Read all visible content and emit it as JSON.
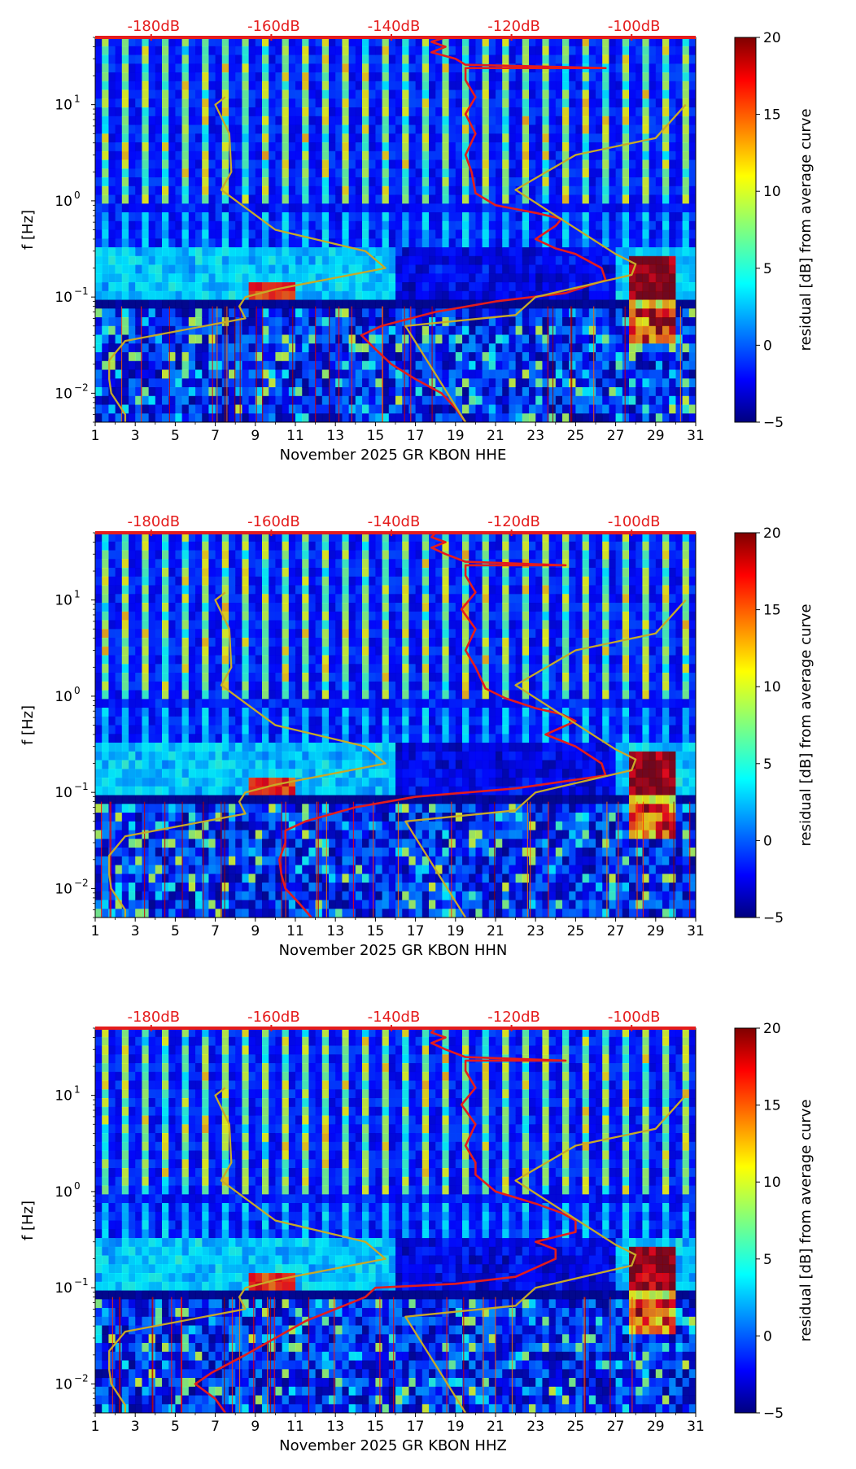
{
  "chart_data": [
    {
      "type": "heatmap",
      "id": "hhe",
      "xlabel": "November 2025 GR KBON  HHE",
      "ylabel": "f [Hz]",
      "xlim": [
        1,
        31
      ],
      "xticks": [
        "1",
        "3",
        "5",
        "7",
        "9",
        "11",
        "13",
        "15",
        "17",
        "19",
        "21",
        "23",
        "25",
        "27",
        "29",
        "31"
      ],
      "yscale": "log",
      "ylim": [
        0.005,
        50
      ],
      "yticks": [
        {
          "v": 0.01,
          "base": "10",
          "exp": "−2"
        },
        {
          "v": 0.1,
          "base": "10",
          "exp": "−1"
        },
        {
          "v": 1,
          "base": "10",
          "exp": "0"
        },
        {
          "v": 10,
          "base": "10",
          "exp": "1"
        }
      ],
      "top_axis": {
        "labels": [
          "-180dB",
          "-160dB",
          "-140dB",
          "-120dB",
          "-100dB"
        ],
        "days": [
          4,
          10,
          16,
          22,
          28
        ],
        "db_range": [
          -190,
          -90
        ]
      },
      "colorbar": {
        "label": "residual [dB] from average curve",
        "range": [
          -5,
          20
        ],
        "ticks": [
          "20",
          "15",
          "10",
          "5",
          "0",
          "−5"
        ],
        "tick_values": [
          20,
          15,
          10,
          5,
          0,
          -5
        ]
      },
      "series": [
        {
          "name": "average PSD (red)",
          "color": "#e51c1c",
          "points": [
            [
              19.5,
              0.005
            ],
            [
              19.0,
              0.007
            ],
            [
              18.3,
              0.01
            ],
            [
              17.0,
              0.014
            ],
            [
              15.8,
              0.02
            ],
            [
              14.9,
              0.03
            ],
            [
              14.3,
              0.04
            ],
            [
              15.3,
              0.05
            ],
            [
              18.0,
              0.07
            ],
            [
              21.0,
              0.09
            ],
            [
              24.5,
              0.11
            ],
            [
              26.5,
              0.15
            ],
            [
              26.3,
              0.2
            ],
            [
              25.0,
              0.28
            ],
            [
              24.0,
              0.32
            ],
            [
              23.0,
              0.4
            ],
            [
              24.0,
              0.55
            ],
            [
              24.3,
              0.65
            ],
            [
              23.0,
              0.75
            ],
            [
              21.0,
              0.9
            ],
            [
              20.0,
              1.2
            ],
            [
              19.8,
              2
            ],
            [
              19.5,
              3
            ],
            [
              20.0,
              5
            ],
            [
              19.5,
              8
            ],
            [
              20.0,
              12
            ],
            [
              19.5,
              18
            ],
            [
              19.5,
              24
            ],
            [
              26.5,
              24
            ],
            [
              19.5,
              26
            ],
            [
              19.0,
              30
            ],
            [
              17.8,
              35
            ],
            [
              18.5,
              40
            ],
            [
              17.8,
              45
            ],
            [
              18.5,
              50
            ]
          ]
        },
        {
          "name": "NLNM/NHNM model (olive)",
          "color": "#c8aa28",
          "points": [
            [
              2.5,
              0.005
            ],
            [
              2.5,
              0.006
            ],
            [
              1.8,
              0.01
            ],
            [
              1.7,
              0.014
            ],
            [
              1.7,
              0.022
            ],
            [
              2.5,
              0.035
            ],
            [
              8.5,
              0.06
            ],
            [
              8.2,
              0.08
            ],
            [
              8.5,
              0.1
            ],
            [
              10.0,
              0.12
            ],
            [
              15.5,
              0.2
            ],
            [
              14.5,
              0.3
            ],
            [
              10.0,
              0.5
            ],
            [
              7.3,
              1.3
            ],
            [
              7.8,
              2
            ],
            [
              7.7,
              5
            ],
            [
              7.0,
              10
            ],
            [
              7.5,
              12
            ]
          ]
        },
        {
          "name": "NHNM model (olive, right)",
          "color": "#c8aa28",
          "points": [
            [
              19.5,
              0.005
            ],
            [
              16.5,
              0.05
            ],
            [
              22.0,
              0.065
            ],
            [
              23.0,
              0.1
            ],
            [
              27.8,
              0.17
            ],
            [
              28.0,
              0.22
            ],
            [
              27.0,
              0.28
            ],
            [
              22.0,
              1.3
            ],
            [
              25.0,
              3
            ],
            [
              29.0,
              4.5
            ],
            [
              30.5,
              10
            ]
          ]
        }
      ]
    },
    {
      "type": "heatmap",
      "id": "hhn",
      "xlabel": "November 2025 GR KBON  HHN",
      "ylabel": "f [Hz]",
      "xlim": [
        1,
        31
      ],
      "xticks": [
        "1",
        "3",
        "5",
        "7",
        "9",
        "11",
        "13",
        "15",
        "17",
        "19",
        "21",
        "23",
        "25",
        "27",
        "29",
        "31"
      ],
      "yscale": "log",
      "ylim": [
        0.005,
        50
      ],
      "yticks": [
        {
          "v": 0.01,
          "base": "10",
          "exp": "−2"
        },
        {
          "v": 0.1,
          "base": "10",
          "exp": "−1"
        },
        {
          "v": 1,
          "base": "10",
          "exp": "0"
        },
        {
          "v": 10,
          "base": "10",
          "exp": "1"
        }
      ],
      "top_axis": {
        "labels": [
          "-180dB",
          "-160dB",
          "-140dB",
          "-120dB",
          "-100dB"
        ],
        "days": [
          4,
          10,
          16,
          22,
          28
        ],
        "db_range": [
          -190,
          -90
        ]
      },
      "colorbar": {
        "label": "residual [dB] from average curve",
        "range": [
          -5,
          20
        ],
        "ticks": [
          "20",
          "15",
          "10",
          "5",
          "0",
          "−5"
        ],
        "tick_values": [
          20,
          15,
          10,
          5,
          0,
          -5
        ]
      },
      "series": [
        {
          "name": "average PSD (red)",
          "color": "#e51c1c",
          "points": [
            [
              11.8,
              0.005
            ],
            [
              11.2,
              0.007
            ],
            [
              10.5,
              0.01
            ],
            [
              10.3,
              0.014
            ],
            [
              10.2,
              0.02
            ],
            [
              10.5,
              0.03
            ],
            [
              10.5,
              0.04
            ],
            [
              11.5,
              0.05
            ],
            [
              14.0,
              0.07
            ],
            [
              17.0,
              0.09
            ],
            [
              22.0,
              0.11
            ],
            [
              26.5,
              0.15
            ],
            [
              26.3,
              0.2
            ],
            [
              25.0,
              0.3
            ],
            [
              23.5,
              0.4
            ],
            [
              25.0,
              0.55
            ],
            [
              24.3,
              0.65
            ],
            [
              23.0,
              0.75
            ],
            [
              21.5,
              0.95
            ],
            [
              20.5,
              1.2
            ],
            [
              20.0,
              2
            ],
            [
              19.5,
              3
            ],
            [
              20.0,
              5
            ],
            [
              19.3,
              8
            ],
            [
              20.0,
              12
            ],
            [
              19.5,
              18
            ],
            [
              19.5,
              23
            ],
            [
              24.5,
              23
            ],
            [
              19.5,
              25
            ],
            [
              18.5,
              30
            ],
            [
              17.8,
              35
            ],
            [
              18.5,
              40
            ],
            [
              17.8,
              45
            ],
            [
              18.0,
              50
            ]
          ]
        },
        {
          "name": "NLNM/NHNM model (olive)",
          "color": "#c8aa28",
          "points": [
            [
              2.5,
              0.005
            ],
            [
              2.5,
              0.006
            ],
            [
              1.8,
              0.01
            ],
            [
              1.7,
              0.014
            ],
            [
              1.7,
              0.022
            ],
            [
              2.5,
              0.035
            ],
            [
              8.5,
              0.06
            ],
            [
              8.2,
              0.08
            ],
            [
              8.5,
              0.1
            ],
            [
              10.0,
              0.12
            ],
            [
              15.5,
              0.2
            ],
            [
              14.5,
              0.3
            ],
            [
              10.0,
              0.5
            ],
            [
              7.3,
              1.3
            ],
            [
              7.8,
              2
            ],
            [
              7.7,
              5
            ],
            [
              7.0,
              10
            ],
            [
              7.5,
              12
            ]
          ]
        },
        {
          "name": "NHNM model (olive, right)",
          "color": "#c8aa28",
          "points": [
            [
              19.5,
              0.005
            ],
            [
              16.5,
              0.05
            ],
            [
              22.0,
              0.065
            ],
            [
              23.0,
              0.1
            ],
            [
              27.8,
              0.17
            ],
            [
              28.0,
              0.22
            ],
            [
              27.0,
              0.28
            ],
            [
              22.0,
              1.3
            ],
            [
              25.0,
              3
            ],
            [
              29.0,
              4.5
            ],
            [
              30.5,
              10
            ]
          ]
        }
      ]
    },
    {
      "type": "heatmap",
      "id": "hhz",
      "xlabel": "November 2025 GR KBON  HHZ",
      "ylabel": "f [Hz]",
      "xlim": [
        1,
        31
      ],
      "xticks": [
        "1",
        "3",
        "5",
        "7",
        "9",
        "11",
        "13",
        "15",
        "17",
        "19",
        "21",
        "23",
        "25",
        "27",
        "29",
        "31"
      ],
      "yscale": "log",
      "ylim": [
        0.005,
        50
      ],
      "yticks": [
        {
          "v": 0.01,
          "base": "10",
          "exp": "−2"
        },
        {
          "v": 0.1,
          "base": "10",
          "exp": "−1"
        },
        {
          "v": 1,
          "base": "10",
          "exp": "0"
        },
        {
          "v": 10,
          "base": "10",
          "exp": "1"
        }
      ],
      "top_axis": {
        "labels": [
          "-180dB",
          "-160dB",
          "-140dB",
          "-120dB",
          "-100dB"
        ],
        "days": [
          4,
          10,
          16,
          22,
          28
        ],
        "db_range": [
          -190,
          -90
        ]
      },
      "colorbar": {
        "label": "residual [dB] from average curve",
        "range": [
          -5,
          20
        ],
        "ticks": [
          "20",
          "15",
          "10",
          "5",
          "0",
          "−5"
        ],
        "tick_values": [
          20,
          15,
          10,
          5,
          0,
          -5
        ]
      },
      "series": [
        {
          "name": "average PSD (red)",
          "color": "#e51c1c",
          "points": [
            [
              7.5,
              0.005
            ],
            [
              7.0,
              0.007
            ],
            [
              6.0,
              0.01
            ],
            [
              6.8,
              0.013
            ],
            [
              8.5,
              0.02
            ],
            [
              10.0,
              0.03
            ],
            [
              11.5,
              0.045
            ],
            [
              13.0,
              0.06
            ],
            [
              14.5,
              0.08
            ],
            [
              15.0,
              0.1
            ],
            [
              19.0,
              0.11
            ],
            [
              22.0,
              0.13
            ],
            [
              24.0,
              0.2
            ],
            [
              24.0,
              0.25
            ],
            [
              23.0,
              0.3
            ],
            [
              25.0,
              0.38
            ],
            [
              25.0,
              0.5
            ],
            [
              24.3,
              0.6
            ],
            [
              23.0,
              0.75
            ],
            [
              21.0,
              1
            ],
            [
              20.0,
              1.5
            ],
            [
              20.0,
              2
            ],
            [
              19.5,
              3
            ],
            [
              20.0,
              5
            ],
            [
              19.3,
              8
            ],
            [
              20.0,
              12
            ],
            [
              19.5,
              18
            ],
            [
              19.5,
              23
            ],
            [
              24.5,
              23
            ],
            [
              19.5,
              25
            ],
            [
              18.5,
              30
            ],
            [
              17.8,
              35
            ],
            [
              18.5,
              40
            ],
            [
              17.8,
              45
            ],
            [
              18.0,
              50
            ]
          ]
        },
        {
          "name": "NLNM/NHNM model (olive)",
          "color": "#c8aa28",
          "points": [
            [
              2.5,
              0.005
            ],
            [
              2.5,
              0.006
            ],
            [
              1.8,
              0.01
            ],
            [
              1.7,
              0.014
            ],
            [
              1.7,
              0.022
            ],
            [
              2.5,
              0.035
            ],
            [
              8.5,
              0.06
            ],
            [
              8.2,
              0.08
            ],
            [
              8.5,
              0.1
            ],
            [
              10.0,
              0.12
            ],
            [
              15.5,
              0.2
            ],
            [
              14.5,
              0.3
            ],
            [
              10.0,
              0.5
            ],
            [
              7.3,
              1.3
            ],
            [
              7.8,
              2
            ],
            [
              7.7,
              5
            ],
            [
              7.0,
              10
            ],
            [
              7.5,
              12
            ]
          ]
        },
        {
          "name": "NHNM model (olive, right)",
          "color": "#c8aa28",
          "points": [
            [
              19.5,
              0.005
            ],
            [
              16.5,
              0.05
            ],
            [
              22.0,
              0.065
            ],
            [
              23.0,
              0.1
            ],
            [
              27.8,
              0.17
            ],
            [
              28.0,
              0.22
            ],
            [
              27.0,
              0.28
            ],
            [
              22.0,
              1.3
            ],
            [
              25.0,
              3
            ],
            [
              29.0,
              4.5
            ],
            [
              30.5,
              10
            ]
          ]
        }
      ]
    }
  ]
}
